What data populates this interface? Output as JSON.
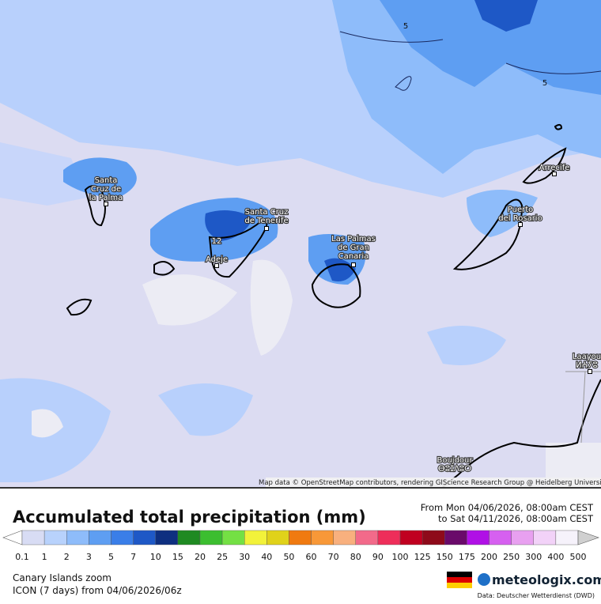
{
  "map": {
    "places": [
      {
        "lines": [
          "Santa",
          "Cruz de",
          "la Palma"
        ]
      },
      {
        "lines": [
          "Santa Cruz",
          "de Tenerife"
        ]
      },
      {
        "lines": [
          "Adeje"
        ]
      },
      {
        "lines": [
          "Las Palmas",
          "de Gran",
          "Canaria"
        ]
      },
      {
        "lines": [
          "Puerto",
          "del Rosario"
        ]
      },
      {
        "lines": [
          "Arrecife"
        ]
      },
      {
        "lines": [
          "Laayou",
          "ⵍⵄⵢⵓ"
        ]
      },
      {
        "lines": [
          "Boujdour",
          "ⴱⵓⵊⴷⵓⵔ"
        ]
      }
    ],
    "contour_labels": [
      "5",
      "5",
      "12"
    ],
    "attribution": "Map data © OpenStreetMap contributors, rendering GIScience Research Group @ Heidelberg University"
  },
  "legend": {
    "title": "Accumulated total precipitation (mm)",
    "period": [
      "From Mon 04/06/2026, 08:00am CEST",
      "to Sat 04/11/2026, 08:00am CEST"
    ],
    "labels": [
      0.1,
      1,
      2,
      3,
      5,
      7,
      10,
      15,
      20,
      25,
      30,
      40,
      50,
      60,
      70,
      80,
      90,
      100,
      125,
      150,
      175,
      200,
      250,
      300,
      400,
      500
    ],
    "colors": [
      "#ffffff",
      "#d8dcf4",
      "#b8d2fc",
      "#8ebcfa",
      "#5e9ef2",
      "#3a7ee8",
      "#1e58c6",
      "#0e2f80",
      "#1f8a22",
      "#3cbe30",
      "#74e044",
      "#f2f23a",
      "#e0d21a",
      "#f07a10",
      "#f89838",
      "#f8b07e",
      "#f26a8a",
      "#ee2e5a",
      "#c00020",
      "#8e0a1a",
      "#6a0a6a",
      "#b010e6",
      "#d660f0",
      "#e8a0f0",
      "#f2d2f8",
      "#f6f2fb",
      "#d0d0d0",
      "#888888"
    ]
  },
  "footer": {
    "region": "Canary Islands zoom",
    "model": "ICON (7 days) from 04/06/2026/06z",
    "brand": "meteologix.com",
    "source": "Data: Deutscher Wetterdienst (DWD)"
  }
}
